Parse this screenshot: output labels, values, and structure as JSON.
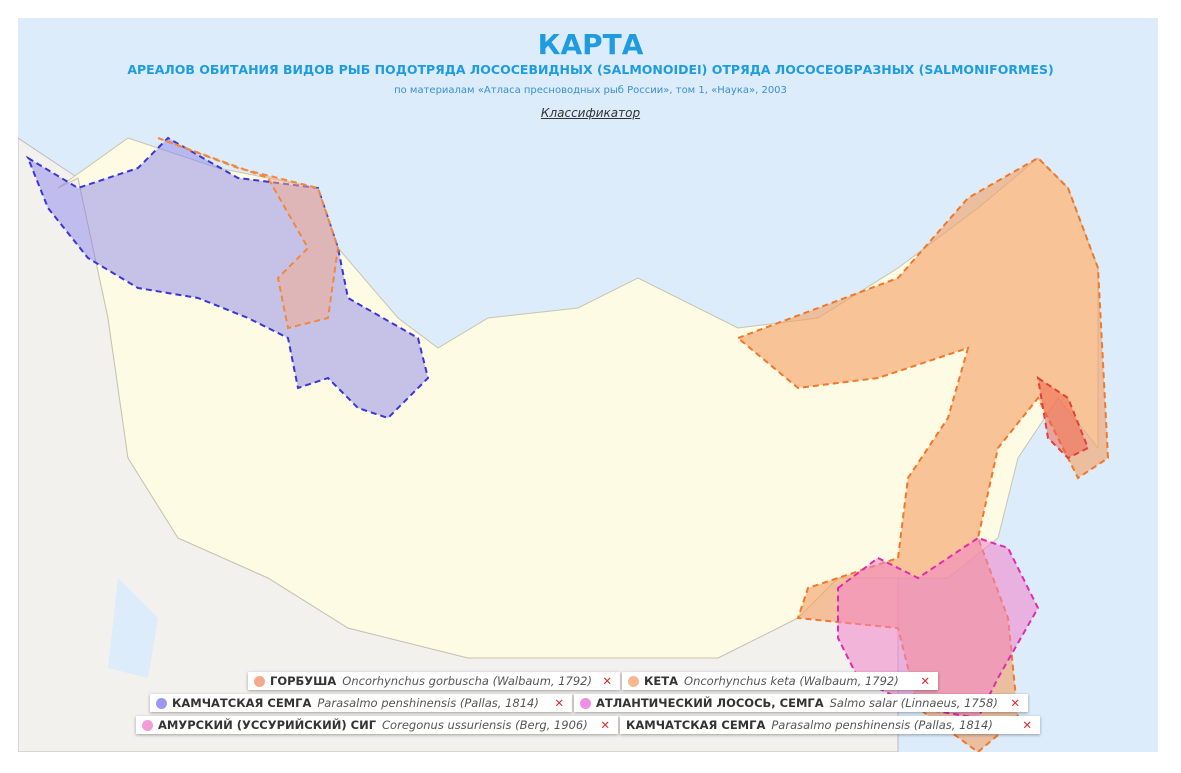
{
  "header": {
    "title": "КАРТА",
    "subtitle": "АРЕАЛОВ ОБИТАНИЯ ВИДОВ РЫБ ПОДОТРЯДА ЛОСОСЕВИДНЫХ (SALMONOIDEI) ОТРЯДА ЛОСОСЕОБРАЗНЫХ (SALMONIFORMES)",
    "source": "по материалам «Атласа пресноводных рыб России», том 1, «Наука», 2003",
    "link": "Классификатор"
  },
  "legend": [
    {
      "name": "ГОРБУША",
      "latin": "Oncorhynchus gorbuscha (Walbaum, 1792)",
      "color": "#f5a98a",
      "remove": "✕"
    },
    {
      "name": "КЕТА",
      "latin": "Oncorhynchus keta (Walbaum, 1792)",
      "color": "#f6b88c",
      "remove": "✕"
    },
    {
      "name": "КАМЧАТСКАЯ СЕМГА",
      "latin": "Parasalmo penshinensis (Pallas, 1814)",
      "color": "#9b98ef",
      "remove": "✕"
    },
    {
      "name": "АТЛАНТИЧЕСКИЙ ЛОСОСЬ, СЕМГА",
      "latin": "Salmo salar (Linnaeus, 1758)",
      "color": "#f08de6",
      "remove": "✕"
    },
    {
      "name": "АМУРСКИЙ (УССУРИЙСКИЙ) СИГ",
      "latin": "Coregonus ussuriensis (Berg, 1906)",
      "color": "#f39bd6",
      "remove": "✕"
    },
    {
      "name": "КАМЧАТСКАЯ СЕМГА",
      "latin": "Parasalmo penshinensis (Pallas, 1814)",
      "remove": "✕"
    }
  ]
}
